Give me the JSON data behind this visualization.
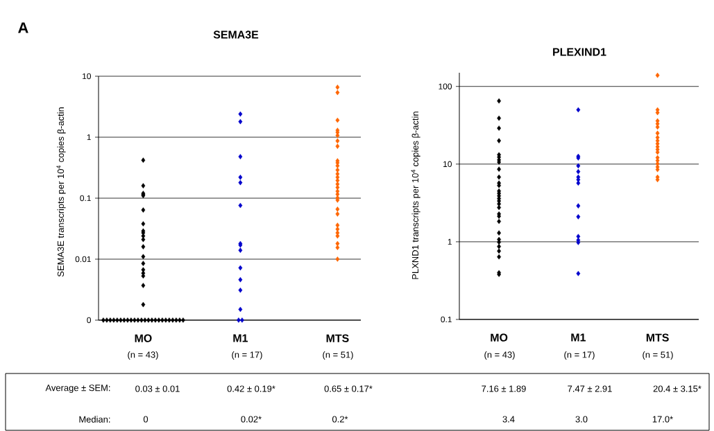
{
  "chart_data": [
    {
      "type": "scatter",
      "title": "SEMA3E",
      "ylabel": "SEMA3E transcripts per 10$^{4}$ copies β-actin",
      "categories": [
        "MO",
        "M1",
        "MTS"
      ],
      "log": "y",
      "grid": "y",
      "marker": "diamond",
      "ylim": [
        0.001,
        10
      ],
      "yticks": [
        {
          "value": 0.001,
          "label": "0"
        },
        0.01,
        0.1,
        1,
        10
      ],
      "series": [
        {
          "color": "#000000",
          "x": [
            "MO",
            "MO",
            "MO",
            "MO",
            "MO",
            "MO",
            "MO",
            "MO",
            "MO",
            "MO",
            "MO",
            "MO",
            "MO",
            "MO",
            "MO",
            "MO",
            "MO",
            "MO",
            "MO",
            "MO",
            "MO",
            "MO",
            "MO",
            "MO",
            "MO",
            "MO",
            "MO",
            "MO",
            "MO",
            "MO",
            "MO",
            "MO",
            "MO",
            "MO",
            "MO",
            "MO",
            "MO",
            "MO",
            "MO",
            "MO",
            "MO",
            "MO",
            "MO"
          ],
          "values": [
            0.42,
            0.16,
            0.12,
            0.115,
            0.11,
            0.064,
            0.038,
            0.029,
            0.027,
            0.024,
            0.021,
            0.016,
            0.011,
            0.0085,
            0.0067,
            0.0059,
            0.0053,
            0.0037,
            0.0018,
            0.001,
            0.001,
            0.001,
            0.001,
            0.001,
            0.001,
            0.001,
            0.001,
            0.001,
            0.001,
            0.001,
            0.001,
            0.001,
            0.001,
            0.001,
            0.001,
            0.001,
            0.001,
            0.001,
            0.001,
            0.001,
            0.001,
            0.001,
            0.001
          ]
        },
        {
          "color": "#0000cc",
          "x": [
            "M1",
            "M1",
            "M1",
            "M1",
            "M1",
            "M1",
            "M1",
            "M1",
            "M1",
            "M1",
            "M1",
            "M1",
            "M1",
            "M1",
            "M1"
          ],
          "values": [
            2.4,
            1.8,
            0.48,
            0.22,
            0.18,
            0.076,
            0.018,
            0.017,
            0.014,
            0.0072,
            0.0046,
            0.0031,
            0.0015,
            0.001,
            0.001
          ]
        },
        {
          "color": "#ff6600",
          "x": [
            "MTS",
            "MTS",
            "MTS",
            "MTS",
            "MTS",
            "MTS",
            "MTS",
            "MTS",
            "MTS",
            "MTS",
            "MTS",
            "MTS",
            "MTS",
            "MTS",
            "MTS",
            "MTS",
            "MTS",
            "MTS",
            "MTS",
            "MTS",
            "MTS",
            "MTS",
            "MTS",
            "MTS",
            "MTS",
            "MTS",
            "MTS",
            "MTS",
            "MTS",
            "MTS"
          ],
          "values": [
            6.6,
            5.4,
            1.9,
            1.3,
            1.2,
            1.07,
            0.87,
            0.71,
            0.41,
            0.38,
            0.34,
            0.29,
            0.25,
            0.22,
            0.195,
            0.17,
            0.15,
            0.13,
            0.116,
            0.101,
            0.093,
            0.066,
            0.055,
            0.036,
            0.031,
            0.027,
            0.024,
            0.018,
            0.0155,
            0.01
          ]
        }
      ],
      "annotations": [
        "A",
        "(n = 43)",
        "(n = 17)",
        "(n = 51)",
        "Average ± SEM:",
        "0.03 ± 0.01",
        "0.42 ± 0.19*",
        "0.65 ± 0.17*",
        "Median:",
        "0",
        "0.02*",
        "0.2*"
      ]
    },
    {
      "type": "scatter",
      "title": "PLEXIND1",
      "ylabel": "PLXND1 transcripts per 10$^{4}$ copies β-actin",
      "categories": [
        "MO",
        "M1",
        "MTS"
      ],
      "log": "y",
      "grid": "y",
      "marker": "diamond",
      "ylim": [
        0.1,
        150
      ],
      "yticks": [
        0.1,
        1,
        10,
        100
      ],
      "series": [
        {
          "color": "#000000",
          "x": [
            "MO",
            "MO",
            "MO",
            "MO",
            "MO",
            "MO",
            "MO",
            "MO",
            "MO",
            "MO",
            "MO",
            "MO",
            "MO",
            "MO",
            "MO",
            "MO",
            "MO",
            "MO",
            "MO",
            "MO",
            "MO",
            "MO",
            "MO",
            "MO",
            "MO",
            "MO",
            "MO",
            "MO",
            "MO",
            "MO"
          ],
          "values": [
            65,
            39,
            29,
            20,
            13.2,
            12.3,
            11.3,
            10.6,
            8.6,
            6.8,
            5.7,
            5.3,
            4.5,
            4.2,
            3.9,
            3.6,
            3.35,
            3.07,
            2.76,
            2.28,
            2.13,
            1.83,
            1.3,
            1.07,
            0.99,
            0.87,
            0.76,
            0.64,
            0.4,
            0.38
          ]
        },
        {
          "color": "#0000cc",
          "x": [
            "M1",
            "M1",
            "M1",
            "M1",
            "M1",
            "M1",
            "M1",
            "M1",
            "M1",
            "M1",
            "M1",
            "M1",
            "M1",
            "M1"
          ],
          "values": [
            50,
            12.6,
            12,
            9.5,
            8,
            6.8,
            6.3,
            5.7,
            2.9,
            2.1,
            1.17,
            1.05,
            0.98,
            0.39
          ]
        },
        {
          "color": "#ff6600",
          "x": [
            "MTS",
            "MTS",
            "MTS",
            "MTS",
            "MTS",
            "MTS",
            "MTS",
            "MTS",
            "MTS",
            "MTS",
            "MTS",
            "MTS",
            "MTS",
            "MTS",
            "MTS",
            "MTS",
            "MTS",
            "MTS",
            "MTS",
            "MTS"
          ],
          "values": [
            139,
            50,
            46,
            36,
            33,
            30,
            25,
            22,
            20,
            18.3,
            16.7,
            15.4,
            14.2,
            12.1,
            11.1,
            10.1,
            9.2,
            8.5,
            6.8,
            6.3
          ]
        }
      ],
      "annotations": [
        "(n = 43)",
        "(n = 17)",
        "(n = 51)",
        "7.16 ± 1.89",
        "7.47 ± 2.91",
        "20.4 ± 3.15*",
        "3.4",
        "3.0",
        "17.0*"
      ]
    }
  ]
}
